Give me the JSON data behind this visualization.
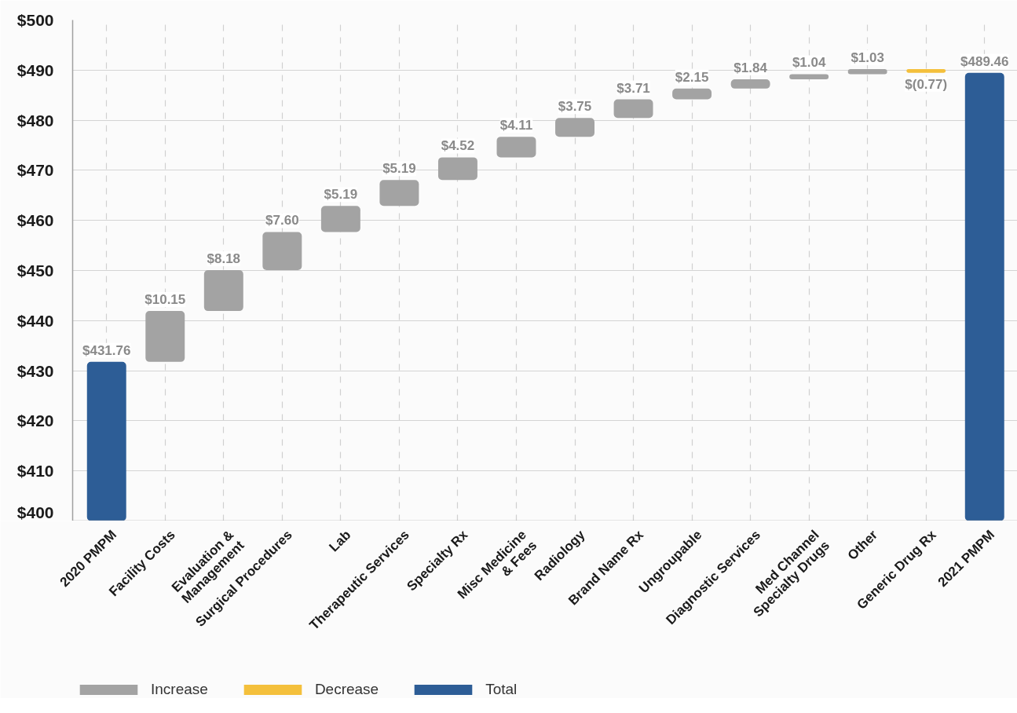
{
  "chart_data": {
    "type": "bar",
    "categories": [
      "2020 PMPM",
      "Facility Costs",
      "Evaluation &\nManagement",
      "Surgical Procedures",
      "Lab",
      "Therapeutic Services",
      "Specialty Rx",
      "Misc Medicine\n& Fees",
      "Radiology",
      "Brand Name Rx",
      "Ungroupable",
      "Diagnostic Services",
      "Med Channel\nSpecialty Drugs",
      "Other",
      "Generic Drug Rx",
      "2021 PMPM"
    ],
    "series": [
      {
        "name": "Increase",
        "color": "#a3a3a3",
        "values": [
          null,
          10.15,
          8.18,
          7.6,
          5.19,
          5.19,
          4.52,
          4.11,
          3.75,
          3.71,
          2.15,
          1.84,
          1.04,
          1.03,
          null,
          null
        ],
        "base": [
          null,
          431.76,
          441.91,
          450.09,
          457.69,
          462.88,
          468.07,
          472.59,
          476.7,
          480.45,
          484.16,
          486.31,
          488.15,
          489.19,
          null,
          null
        ],
        "value_labels": [
          null,
          "$10.15",
          "$8.18",
          "$7.60",
          "$5.19",
          "$5.19",
          "$4.52",
          "$4.11",
          "$3.75",
          "$3.71",
          "$2.15",
          "$1.84",
          "$1.04",
          "$1.03",
          null,
          null
        ]
      },
      {
        "name": "Decrease",
        "color": "#f4c03c",
        "values": [
          null,
          null,
          null,
          null,
          null,
          null,
          null,
          null,
          null,
          null,
          null,
          null,
          null,
          null,
          -0.77,
          null
        ],
        "base": [
          null,
          null,
          null,
          null,
          null,
          null,
          null,
          null,
          null,
          null,
          null,
          null,
          null,
          null,
          490.22,
          null
        ],
        "value_labels": [
          null,
          null,
          null,
          null,
          null,
          null,
          null,
          null,
          null,
          null,
          null,
          null,
          null,
          null,
          "$(0.77)",
          null
        ]
      },
      {
        "name": "Total",
        "color": "#2d5d96",
        "values": [
          431.76,
          null,
          null,
          null,
          null,
          null,
          null,
          null,
          null,
          null,
          null,
          null,
          null,
          null,
          null,
          489.46
        ],
        "value_labels": [
          "$431.76",
          null,
          null,
          null,
          null,
          null,
          null,
          null,
          null,
          null,
          null,
          null,
          null,
          null,
          null,
          "$489.46"
        ]
      }
    ],
    "ylim": [
      400,
      500
    ],
    "yticks": [
      {
        "value": 400,
        "label": "$400"
      },
      {
        "value": 410,
        "label": "$410"
      },
      {
        "value": 420,
        "label": "$420"
      },
      {
        "value": 430,
        "label": "$430"
      },
      {
        "value": 440,
        "label": "$440"
      },
      {
        "value": 450,
        "label": "$450"
      },
      {
        "value": 460,
        "label": "$460"
      },
      {
        "value": 470,
        "label": "$470"
      },
      {
        "value": 480,
        "label": "$480"
      },
      {
        "value": 490,
        "label": "$490"
      },
      {
        "value": 500,
        "label": "$500"
      }
    ],
    "grid": true,
    "legend": "bottom"
  }
}
